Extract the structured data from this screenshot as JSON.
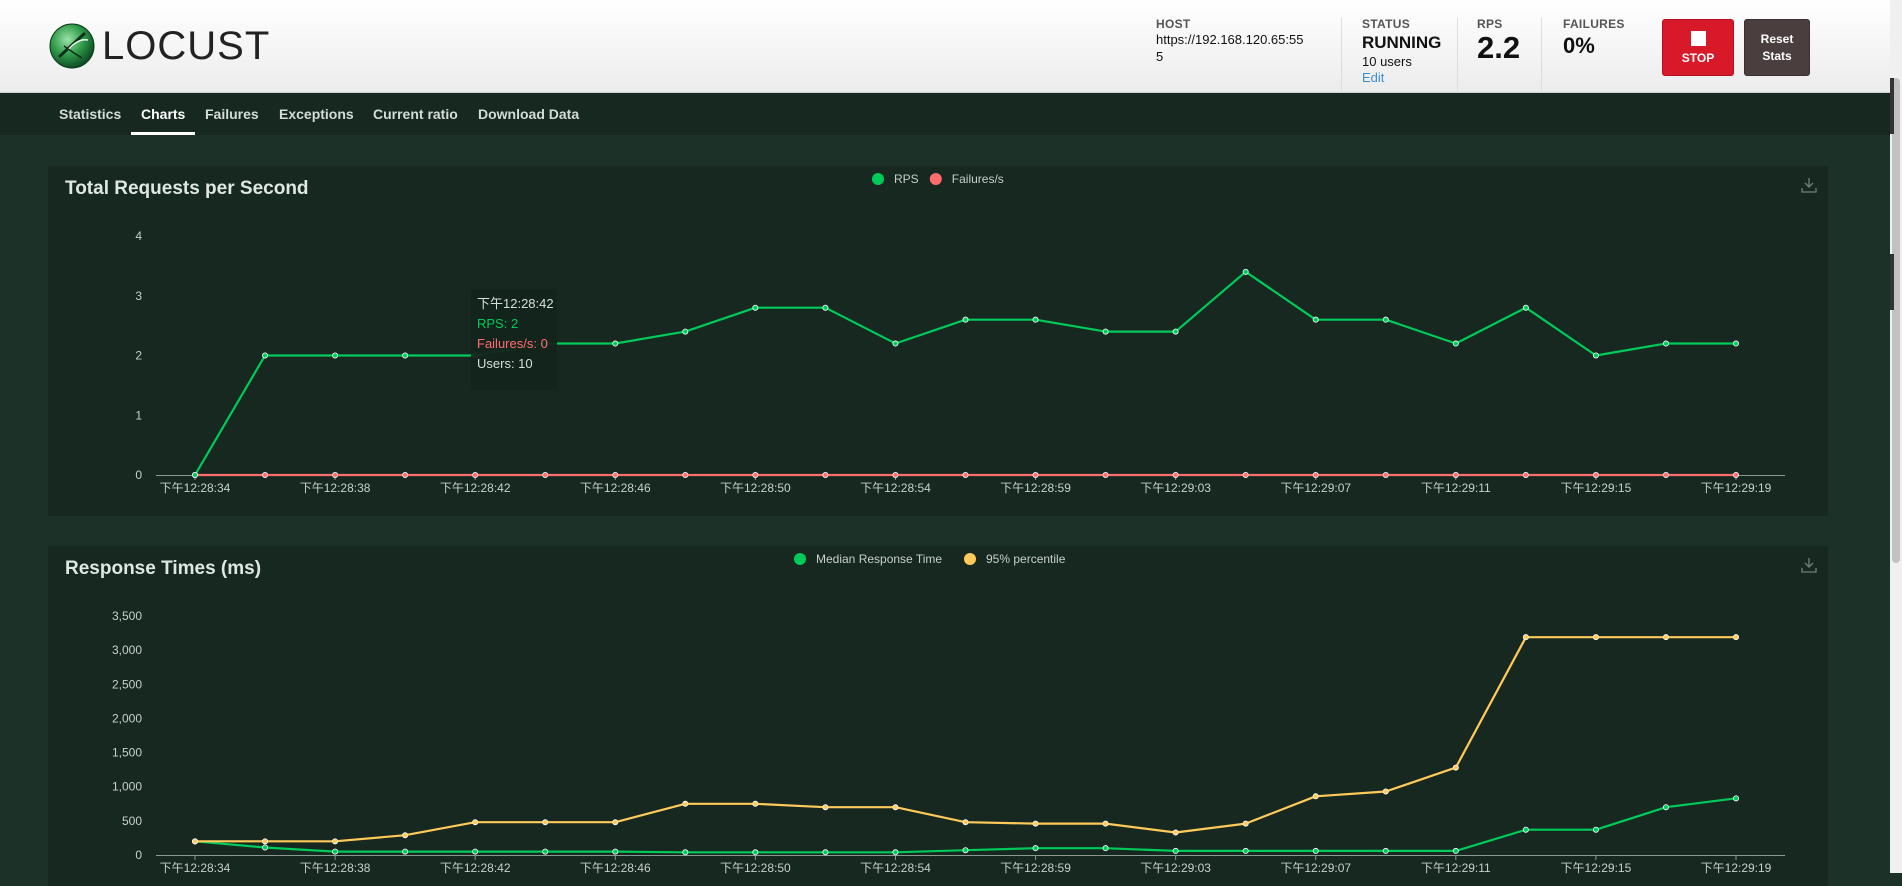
{
  "app": {
    "logo_text": "LOCUST"
  },
  "header": {
    "host_label": "HOST",
    "host_line1": "https://192.168.120.65:55",
    "host_line2": "5",
    "status_label": "STATUS",
    "status_value": "RUNNING",
    "users_text": "10 users",
    "edit_label": "Edit",
    "rps_label": "RPS",
    "rps_value": "2.2",
    "failures_label": "FAILURES",
    "failures_value": "0%",
    "stop_label": "STOP",
    "reset_line1": "Reset",
    "reset_line2": "Stats"
  },
  "nav": {
    "tabs": [
      {
        "label": "Statistics"
      },
      {
        "label": "Charts"
      },
      {
        "label": "Failures"
      },
      {
        "label": "Exceptions"
      },
      {
        "label": "Current ratio"
      },
      {
        "label": "Download Data"
      }
    ],
    "active": "Charts"
  },
  "colors": {
    "rps": "#00ca5a",
    "failures": "#ff6d6d",
    "median": "#00ca5a",
    "p95": "#ffca5a",
    "axis": "#8a9a92",
    "tick_text": "#c8d0cc"
  },
  "chart_data": [
    {
      "type": "line",
      "title": "Total Requests per Second",
      "x": [
        "下午12:28:34",
        "下午12:28:36",
        "下午12:28:38",
        "下午12:28:40",
        "下午12:28:42",
        "下午12:28:44",
        "下午12:28:46",
        "下午12:28:48",
        "下午12:28:50",
        "下午12:28:52",
        "下午12:28:54",
        "下午12:28:56",
        "下午12:28:59",
        "下午12:29:01",
        "下午12:29:03",
        "下午12:29:05",
        "下午12:29:07",
        "下午12:29:09",
        "下午12:29:11",
        "下午12:29:13",
        "下午12:29:15",
        "下午12:29:17",
        "下午12:29:19"
      ],
      "x_tick_labels": [
        "下午12:28:34",
        "下午12:28:38",
        "下午12:28:42",
        "下午12:28:46",
        "下午12:28:50",
        "下午12:28:54",
        "下午12:28:59",
        "下午12:29:03",
        "下午12:29:07",
        "下午12:29:11",
        "下午12:29:15",
        "下午12:29:19"
      ],
      "y_ticks": [
        "0",
        "1",
        "2",
        "3",
        "4"
      ],
      "ylim": [
        0,
        4
      ],
      "legend_position": "top-center",
      "series": [
        {
          "name": "RPS",
          "values": [
            0,
            2,
            2,
            2,
            2,
            2.2,
            2.2,
            2.4,
            2.8,
            2.8,
            2.2,
            2.6,
            2.6,
            2.4,
            2.4,
            3.4,
            2.6,
            2.6,
            2.2,
            2.8,
            2,
            2.2,
            2.2
          ]
        },
        {
          "name": "Failures/s",
          "values": [
            0,
            0,
            0,
            0,
            0,
            0,
            0,
            0,
            0,
            0,
            0,
            0,
            0,
            0,
            0,
            0,
            0,
            0,
            0,
            0,
            0,
            0,
            0
          ]
        }
      ],
      "tooltip": {
        "time": "下午12:28:42",
        "rps": "RPS: 2",
        "failures": "Failures/s: 0",
        "users": "Users: 10",
        "index": 4
      }
    },
    {
      "type": "line",
      "title": "Response Times (ms)",
      "x": [
        "下午12:28:34",
        "下午12:28:36",
        "下午12:28:38",
        "下午12:28:40",
        "下午12:28:42",
        "下午12:28:44",
        "下午12:28:46",
        "下午12:28:48",
        "下午12:28:50",
        "下午12:28:52",
        "下午12:28:54",
        "下午12:28:56",
        "下午12:28:59",
        "下午12:29:01",
        "下午12:29:03",
        "下午12:29:05",
        "下午12:29:07",
        "下午12:29:09",
        "下午12:29:11",
        "下午12:29:13",
        "下午12:29:15",
        "下午12:29:17",
        "下午12:29:19"
      ],
      "x_tick_labels": [
        "下午12:28:34",
        "下午12:28:38",
        "下午12:28:42",
        "下午12:28:46",
        "下午12:28:50",
        "下午12:28:54",
        "下午12:28:59",
        "下午12:29:03",
        "下午12:29:07",
        "下午12:29:11",
        "下午12:29:15",
        "下午12:29:19"
      ],
      "y_ticks": [
        "0",
        "500",
        "1,000",
        "1,500",
        "2,000",
        "2,500",
        "3,000",
        "3,500"
      ],
      "ylim": [
        0,
        3500
      ],
      "legend_position": "top-center",
      "series": [
        {
          "name": "Median Response Time",
          "values": [
            200,
            110,
            50,
            50,
            50,
            50,
            50,
            40,
            40,
            40,
            40,
            70,
            100,
            100,
            60,
            60,
            60,
            60,
            60,
            370,
            370,
            700,
            830
          ]
        },
        {
          "name": "95% percentile",
          "values": [
            200,
            200,
            200,
            290,
            480,
            480,
            480,
            750,
            750,
            700,
            700,
            480,
            460,
            460,
            330,
            460,
            860,
            930,
            1280,
            3190,
            3190,
            3190,
            3190
          ]
        }
      ]
    }
  ]
}
